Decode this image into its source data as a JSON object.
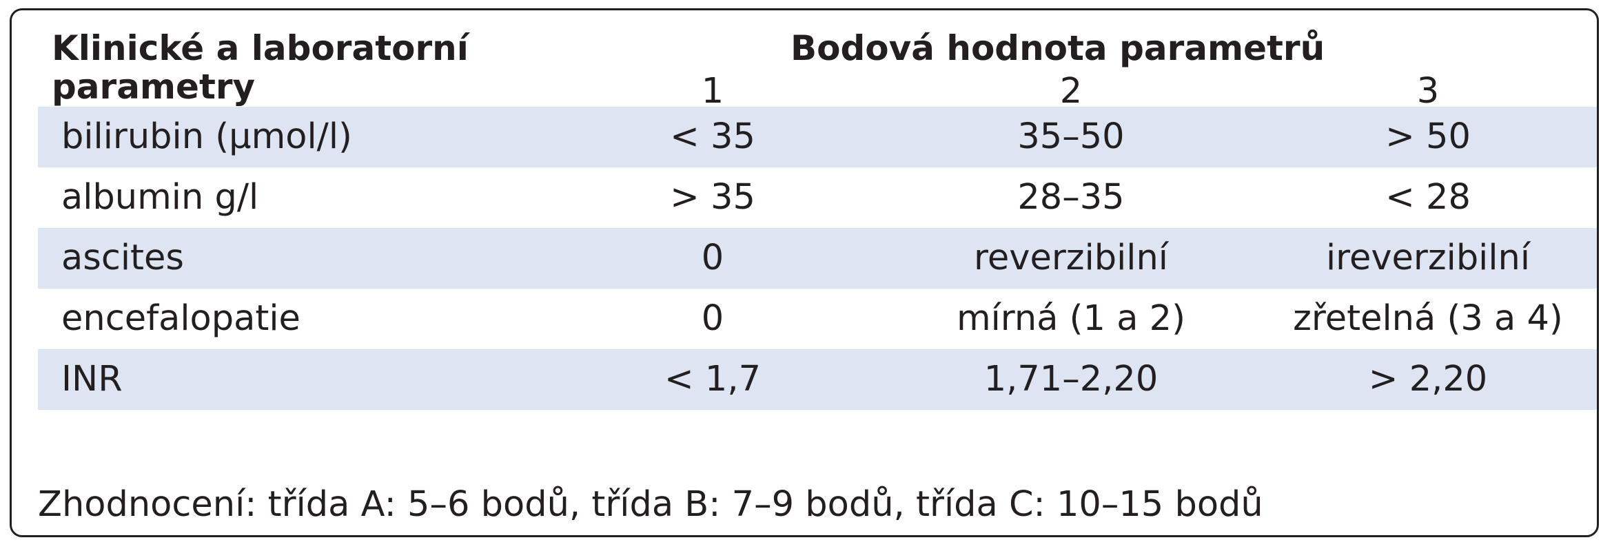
{
  "header": {
    "param_label_line1": "Klinické a laboratorní",
    "param_label_line2": "parametry",
    "score_title": "Bodová hodnota parametrů",
    "score_columns": [
      "1",
      "2",
      "3"
    ]
  },
  "rows": [
    {
      "parameter": "bilirubin (µmol/l)",
      "values": [
        "< 35",
        "35–50",
        "> 50"
      ],
      "shaded": true
    },
    {
      "parameter": "albumin g/l",
      "values": [
        "> 35",
        "28–35",
        "< 28"
      ],
      "shaded": false
    },
    {
      "parameter": "ascites",
      "values": [
        "0",
        "reverzibilní",
        "ireverzibilní"
      ],
      "shaded": true
    },
    {
      "parameter": "encefalopatie",
      "values": [
        "0",
        "mírná (1 a 2)",
        "zřetelná (3 a 4)"
      ],
      "shaded": false
    },
    {
      "parameter": "INR",
      "values": [
        "< 1,7",
        "1,71–2,20",
        "> 2,20"
      ],
      "shaded": true
    }
  ],
  "footer": {
    "evaluation": "Zhodnocení: třída A: 5–6 bodů, třída B: 7–9 bodů, třída C: 10–15 bodů"
  },
  "colors": {
    "shade": "#dde4f2",
    "text": "#231f20",
    "border": "#231f20"
  }
}
